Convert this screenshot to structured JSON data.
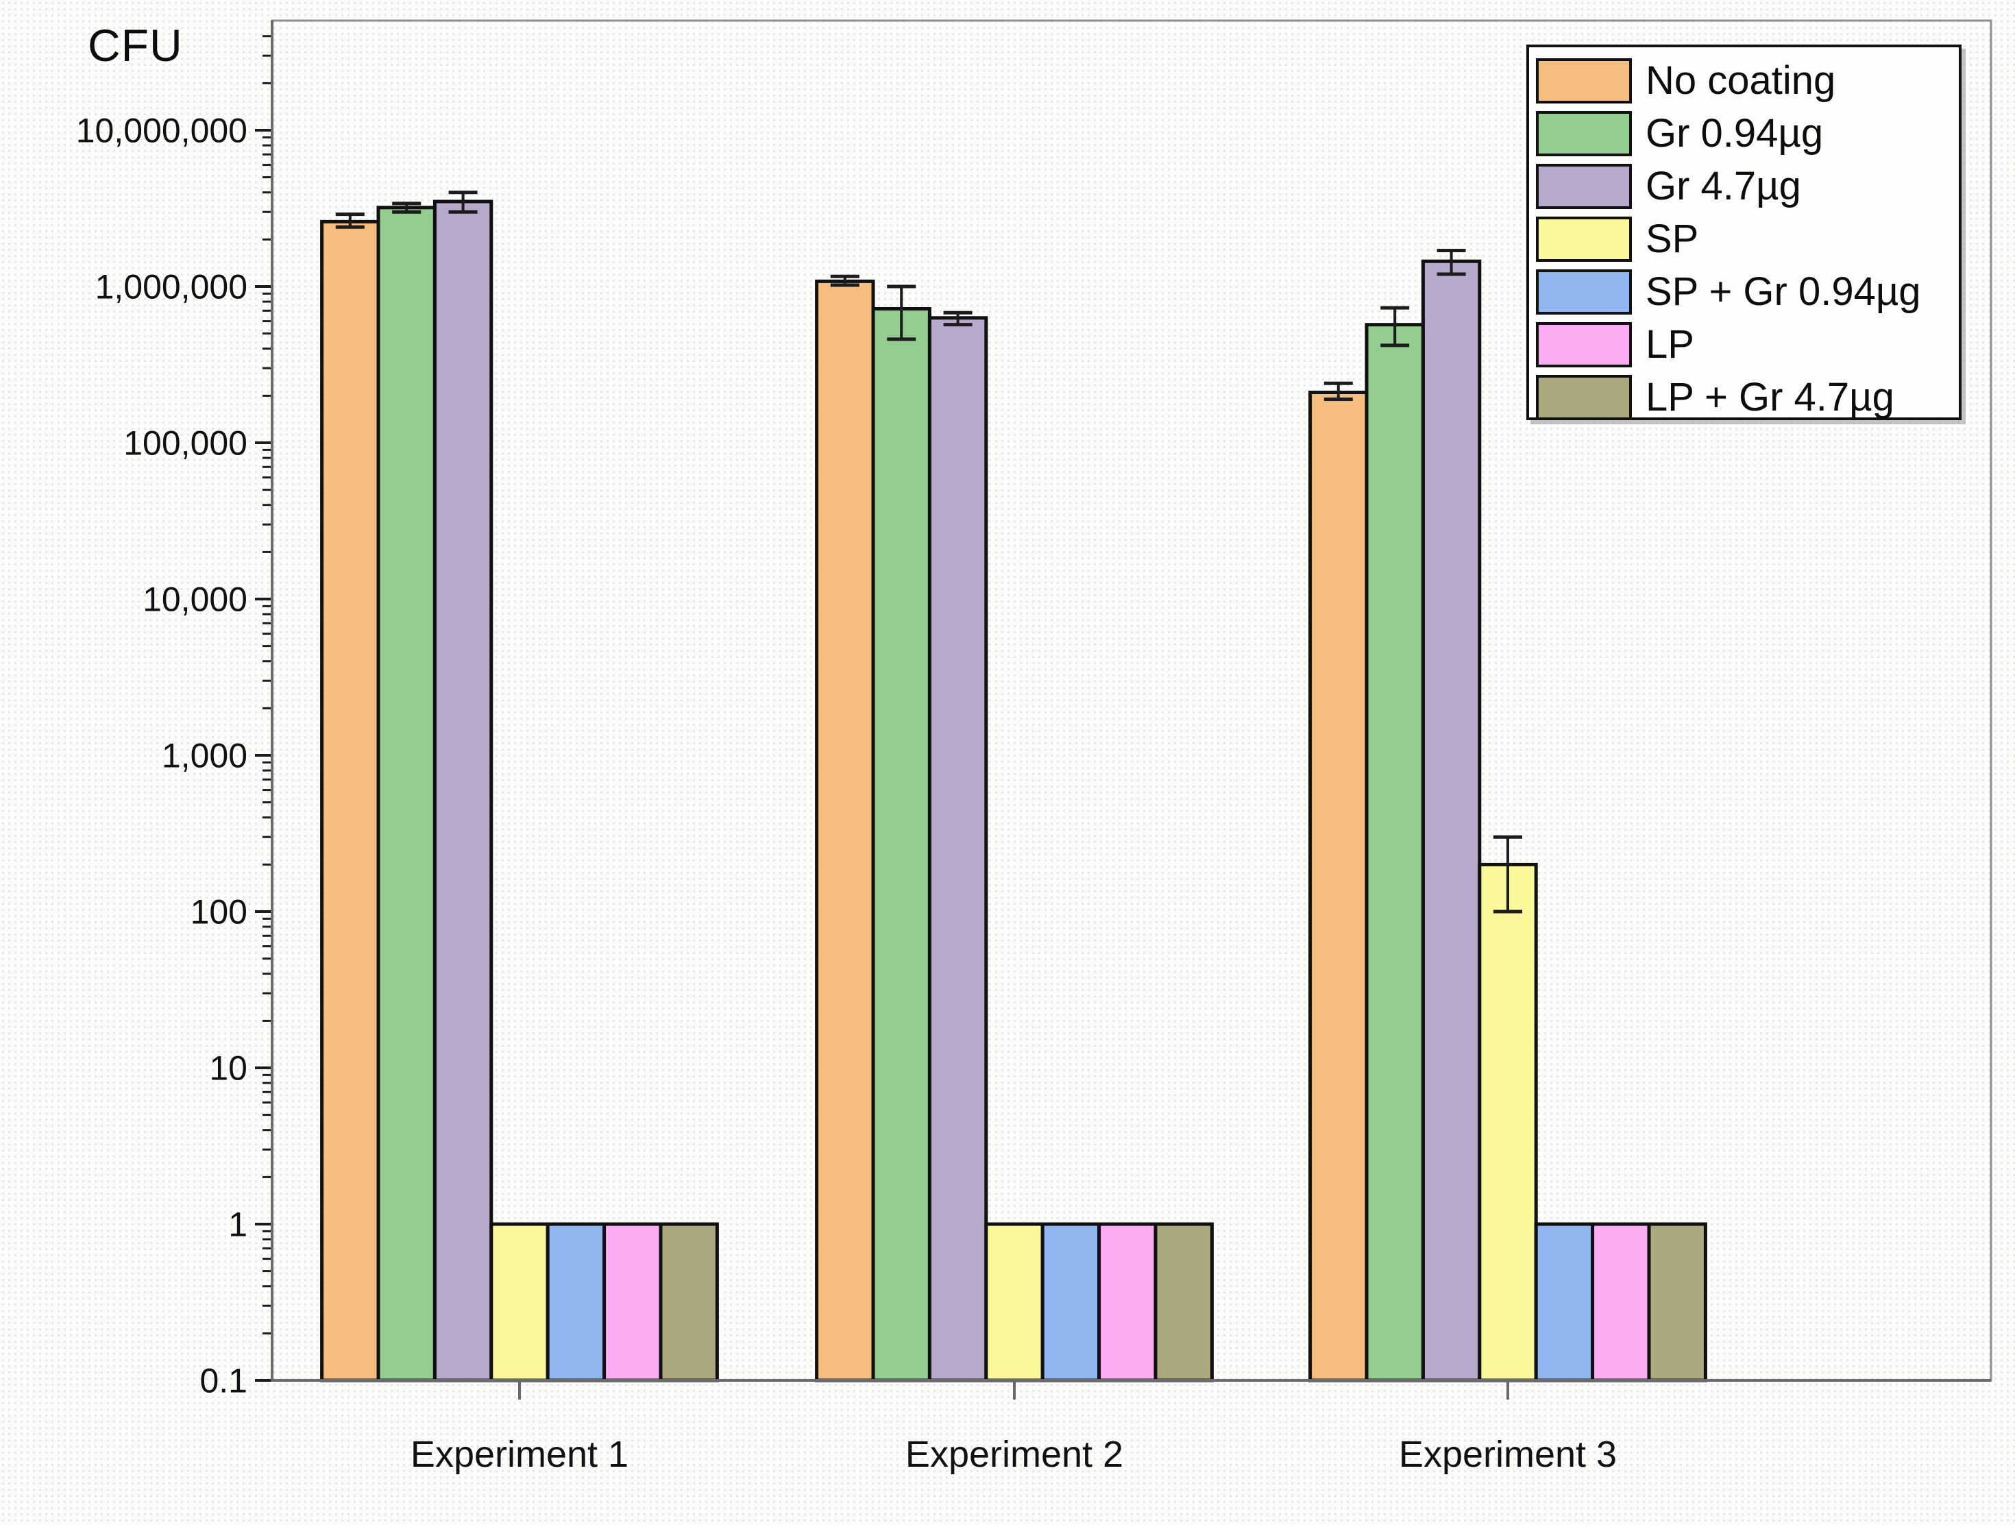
{
  "chart_data": {
    "type": "bar",
    "ylabel": "CFU",
    "scale": "log",
    "ylim": [
      0.1,
      50000000
    ],
    "baseline": 0.1,
    "grid": false,
    "legend_position": "top-right",
    "categories": [
      "Experiment 1",
      "Experiment 2",
      "Experiment 3"
    ],
    "y_ticks": [
      {
        "label": "0.1",
        "value": 0.1
      },
      {
        "label": "1",
        "value": 1
      },
      {
        "label": "10",
        "value": 10
      },
      {
        "label": "100",
        "value": 100
      },
      {
        "label": "1,000",
        "value": 1000
      },
      {
        "label": "10,000",
        "value": 10000
      },
      {
        "label": "100,000",
        "value": 100000
      },
      {
        "label": "1,000,000",
        "value": 1000000
      },
      {
        "label": "10,000,000",
        "value": 10000000
      }
    ],
    "series": [
      {
        "name": "No coating",
        "color": "#F6BE7E",
        "values": [
          2600000,
          1080000,
          210000
        ],
        "err_low": [
          2400000,
          1020000,
          190000
        ],
        "err_high": [
          2900000,
          1160000,
          240000
        ]
      },
      {
        "name": "Gr 0.94µg",
        "color": "#93CD90",
        "values": [
          3200000,
          720000,
          570000
        ],
        "err_low": [
          3000000,
          460000,
          420000
        ],
        "err_high": [
          3400000,
          1000000,
          730000
        ]
      },
      {
        "name": "Gr 4.7µg",
        "color": "#B6A9CC",
        "values": [
          3500000,
          630000,
          1450000
        ],
        "err_low": [
          3000000,
          570000,
          1200000
        ],
        "err_high": [
          4000000,
          680000,
          1700000
        ]
      },
      {
        "name": "SP",
        "color": "#FAF89A",
        "values": [
          1,
          1,
          200
        ],
        "err_low": [
          null,
          null,
          100
        ],
        "err_high": [
          null,
          null,
          300
        ]
      },
      {
        "name": "SP + Gr 0.94µg",
        "color": "#91B5EE",
        "values": [
          1,
          1,
          1
        ],
        "err_low": [
          null,
          null,
          null
        ],
        "err_high": [
          null,
          null,
          null
        ]
      },
      {
        "name": "LP",
        "color": "#FBACF3",
        "values": [
          1,
          1,
          1
        ],
        "err_low": [
          null,
          null,
          null
        ],
        "err_high": [
          null,
          null,
          null
        ]
      },
      {
        "name": "LP + Gr 4.7µg",
        "color": "#ACA87E",
        "values": [
          1,
          1,
          1
        ],
        "err_low": [
          null,
          null,
          null
        ],
        "err_high": [
          null,
          null,
          null
        ]
      }
    ],
    "colors": {
      "bar_border": "#111111",
      "error_bar": "#1c1c1c",
      "axis": "#6a6a6a",
      "frame": "#8f8f8f",
      "tick": "#1c1c1c",
      "text": "#111111"
    }
  }
}
